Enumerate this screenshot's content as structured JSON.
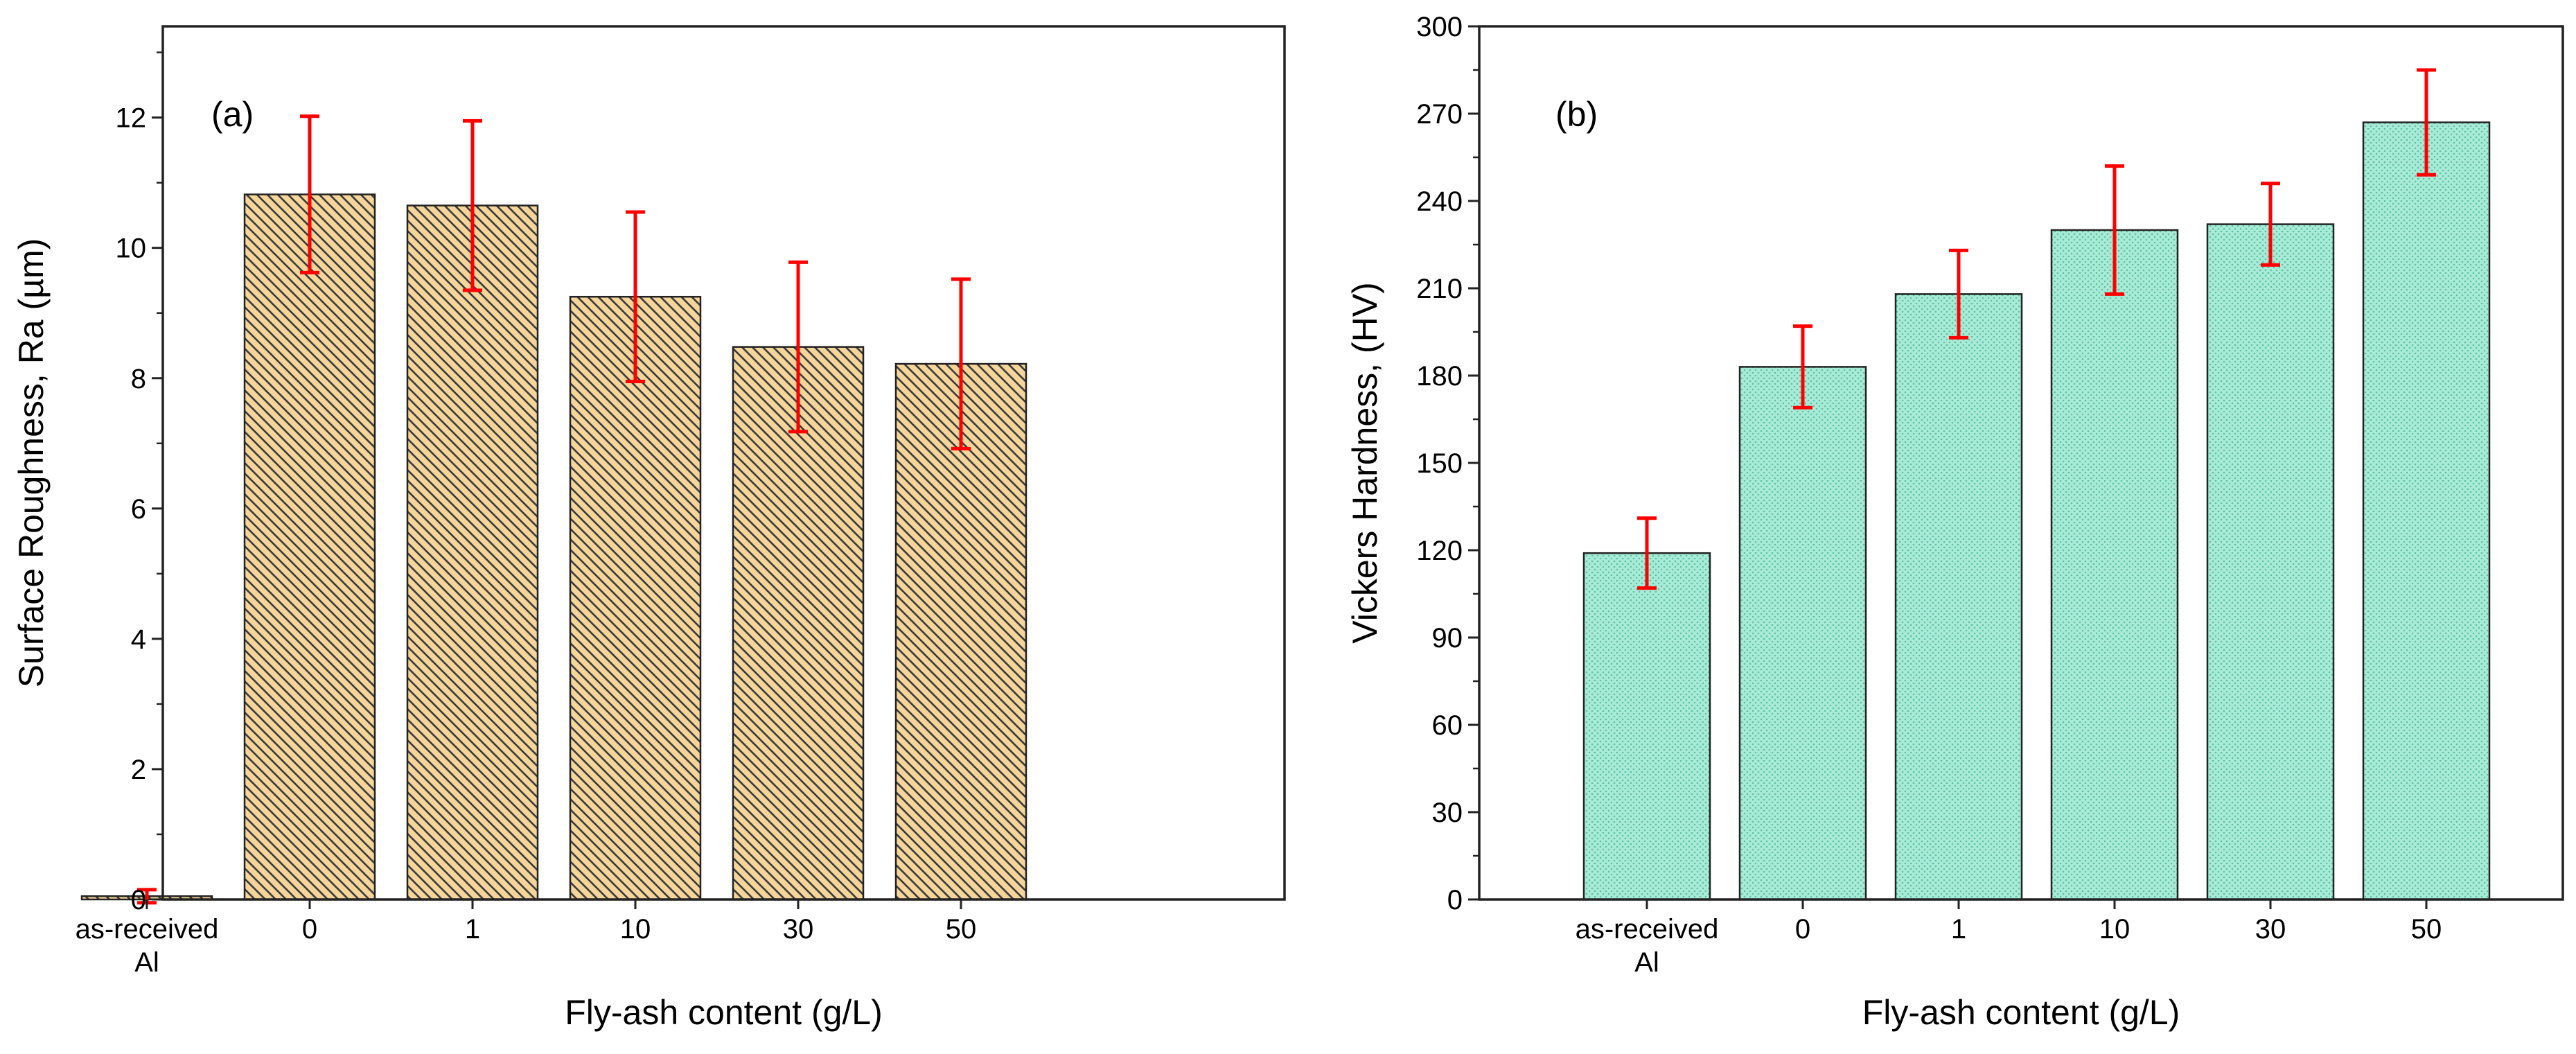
{
  "chart_data": [
    {
      "type": "bar",
      "panel_label": "(a)",
      "categories": [
        "as-received\nAl",
        "0",
        "1",
        "10",
        "30",
        "50"
      ],
      "values": [
        0.05,
        10.82,
        10.65,
        9.25,
        8.48,
        8.22
      ],
      "errors": [
        0.1,
        1.2,
        1.3,
        1.3,
        1.3,
        1.3
      ],
      "xlabel": "Fly-ash content (g/L)",
      "ylabel": "Surface Roughness, Ra (µm)",
      "ylim": [
        0,
        13.4
      ],
      "yticks": [
        0,
        2,
        4,
        6,
        8,
        10,
        12
      ],
      "fill": "#f5d59a",
      "fill_pattern": "diagonal-hatch",
      "error_color": "#ff0000"
    },
    {
      "type": "bar",
      "panel_label": "(b)",
      "categories": [
        "as-received\nAl",
        "0",
        "1",
        "10",
        "30",
        "50"
      ],
      "values": [
        119,
        183,
        208,
        230,
        232,
        267
      ],
      "errors": [
        12,
        14,
        15,
        22,
        14,
        18
      ],
      "xlabel": "Fly-ash content (g/L)",
      "ylabel": "Vickers Hardness, (HV)",
      "ylim": [
        0,
        300
      ],
      "yticks": [
        0,
        30,
        60,
        90,
        120,
        150,
        180,
        210,
        240,
        270,
        300
      ],
      "fill": "#9ee8d0",
      "fill_pattern": "dots",
      "error_color": "#ff0000"
    }
  ]
}
